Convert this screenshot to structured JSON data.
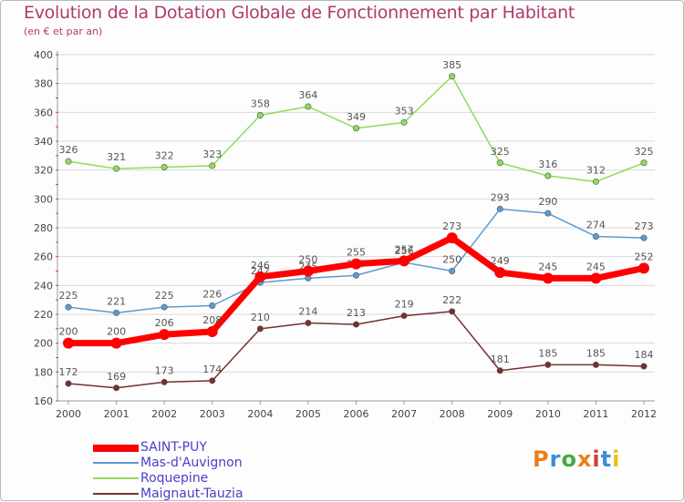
{
  "header": {
    "title": "Evolution de la Dotation Globale de Fonctionnement par Habitant",
    "subtitle": "(en € et par an)"
  },
  "logo": {
    "text": "Proxiti",
    "colors": [
      "#e8811a",
      "#3a8fd6",
      "#3fae3f",
      "#e8811a",
      "#d63a3a",
      "#3a8fd6",
      "#e8c21a"
    ]
  },
  "chart_data": {
    "type": "line",
    "x": [
      "2000",
      "2001",
      "2002",
      "2003",
      "2004",
      "2005",
      "2006",
      "2007",
      "2008",
      "2009",
      "2010",
      "2011",
      "2012"
    ],
    "ylim": [
      160,
      400
    ],
    "yticks": [
      "160",
      "180",
      "200",
      "220",
      "240",
      "260",
      "280",
      "300",
      "320",
      "340",
      "360",
      "380",
      "400"
    ],
    "grid": "horizontal",
    "legend_position": "bottom-left",
    "series": [
      {
        "name": "SAINT-PUY",
        "color": "#ff0000",
        "values": [
          200,
          200,
          206,
          208,
          246,
          250,
          255,
          257,
          273,
          249,
          245,
          245,
          252
        ]
      },
      {
        "name": "Mas-d'Auvignon",
        "color": "#5b9bd5",
        "values": [
          225,
          221,
          225,
          226,
          242,
          245,
          247,
          256,
          250,
          293,
          290,
          274,
          273
        ]
      },
      {
        "name": "Roquepine",
        "color": "#8fdc5a",
        "values": [
          326,
          321,
          322,
          323,
          358,
          364,
          349,
          353,
          385,
          325,
          316,
          312,
          325
        ]
      },
      {
        "name": "Maignaut-Tauzia",
        "color": "#7a2e2e",
        "values": [
          172,
          169,
          173,
          174,
          210,
          214,
          213,
          219,
          222,
          181,
          185,
          185,
          184
        ]
      }
    ]
  }
}
